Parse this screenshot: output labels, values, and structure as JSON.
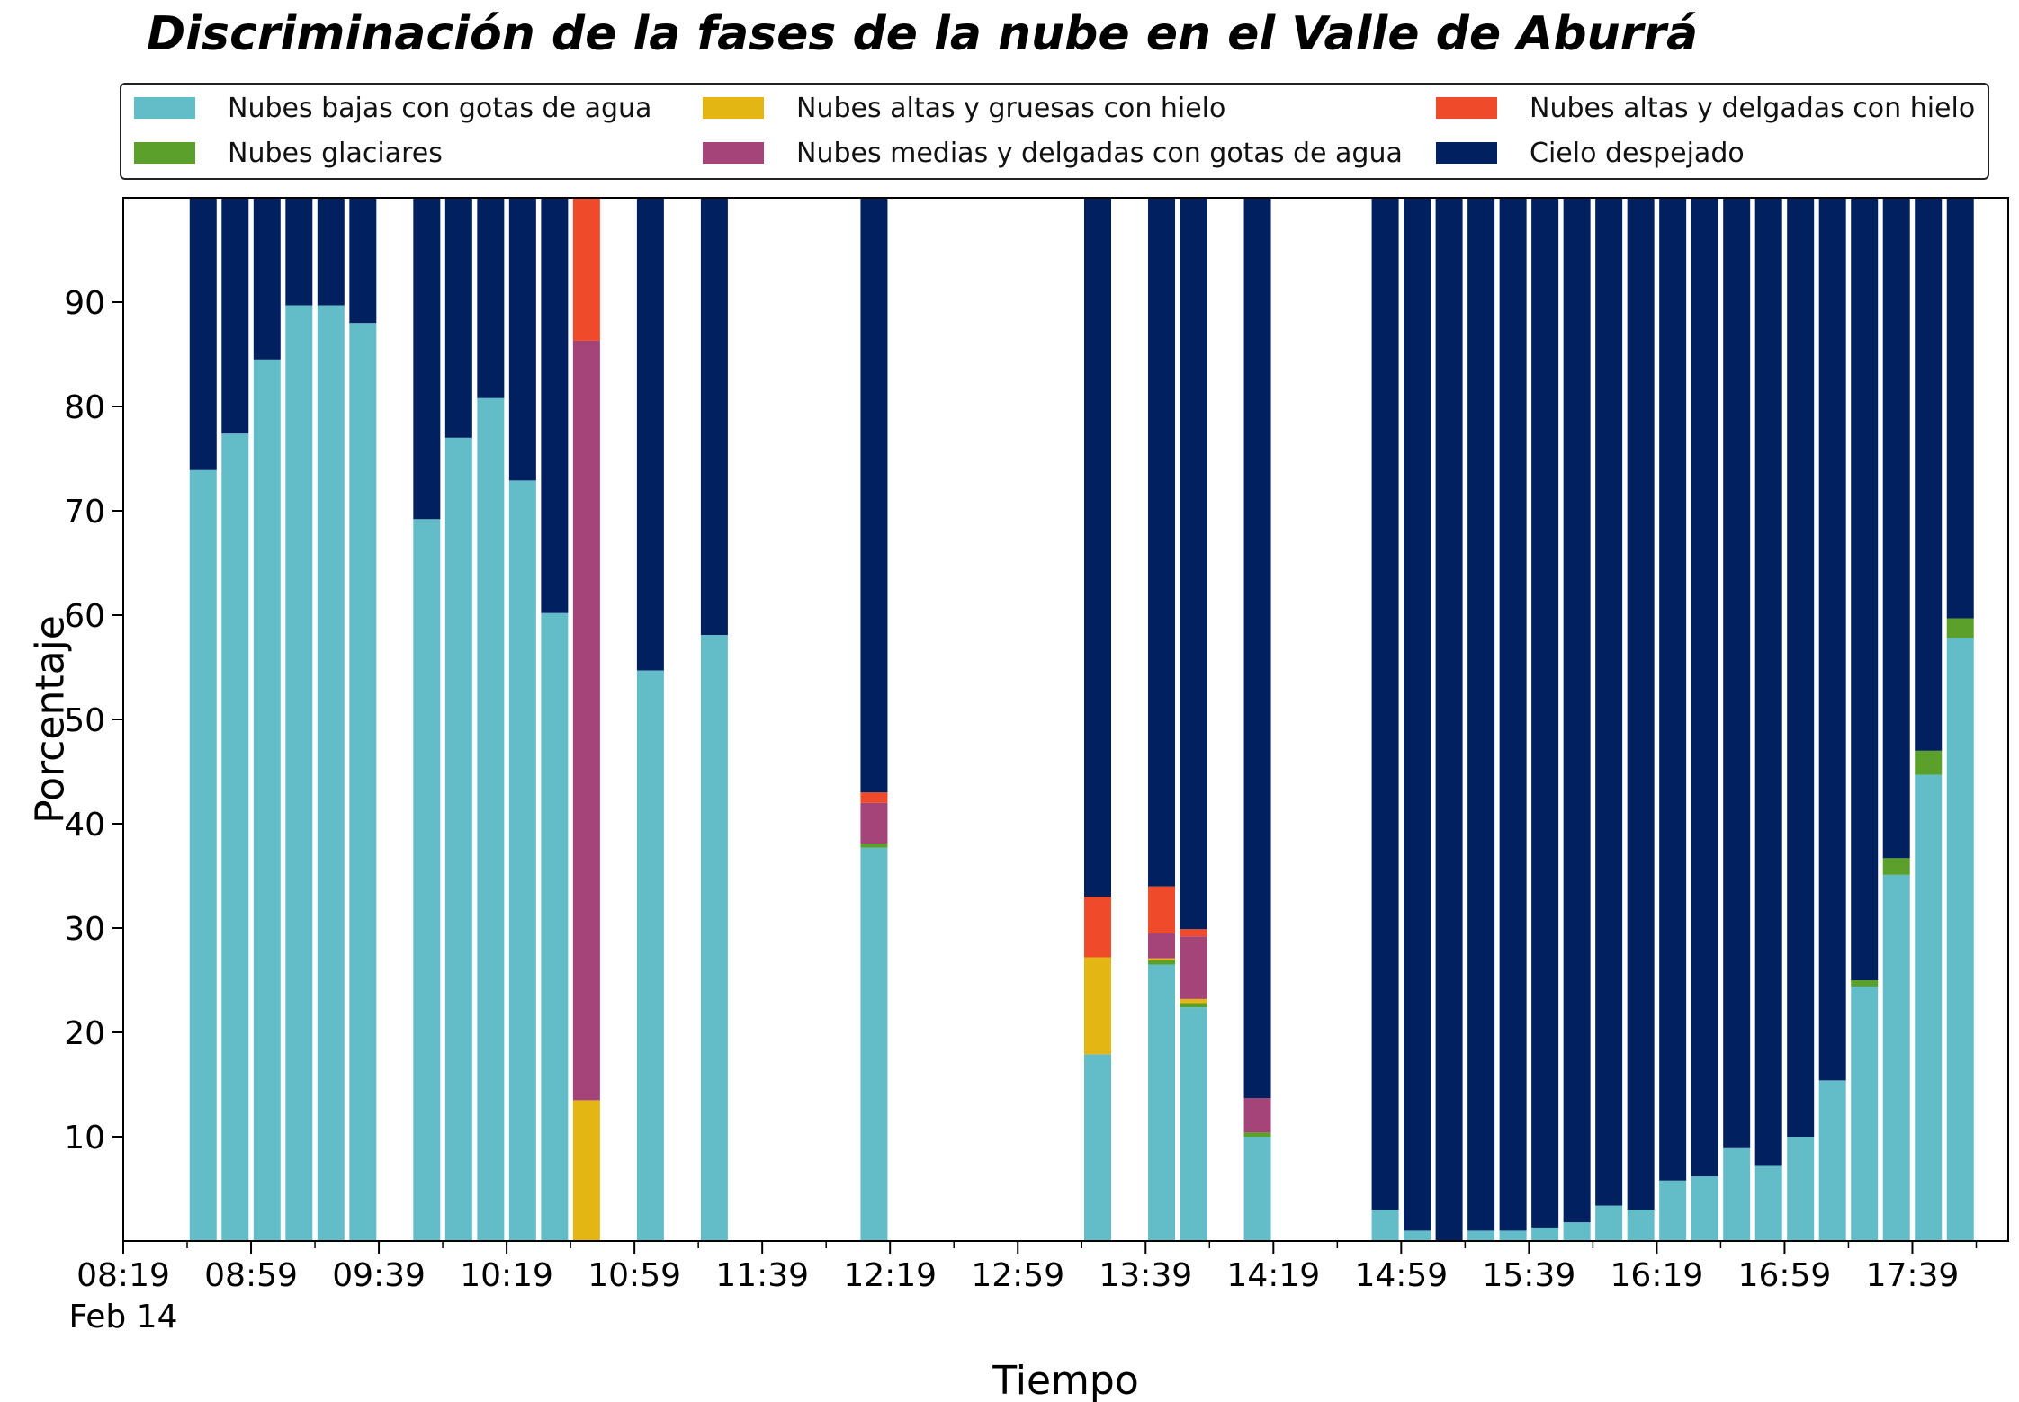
{
  "chart_data": {
    "type": "bar",
    "stacked": true,
    "title": "Discriminación de la fases de la nube en el Valle de Aburrá",
    "xlabel": "Tiempo",
    "ylabel": "Porcentaje",
    "ylim": [
      0,
      100
    ],
    "y_ticks": [
      10,
      20,
      30,
      40,
      50,
      60,
      70,
      80,
      90
    ],
    "x_range_minutes": [
      0,
      590
    ],
    "x_ticks": [
      {
        "label": "08:19",
        "minute": 0
      },
      {
        "label": "08:59",
        "minute": 40
      },
      {
        "label": "09:39",
        "minute": 80
      },
      {
        "label": "10:19",
        "minute": 120
      },
      {
        "label": "10:59",
        "minute": 160
      },
      {
        "label": "11:39",
        "minute": 200
      },
      {
        "label": "12:19",
        "minute": 240
      },
      {
        "label": "12:59",
        "minute": 280
      },
      {
        "label": "13:39",
        "minute": 320
      },
      {
        "label": "14:19",
        "minute": 360
      },
      {
        "label": "14:59",
        "minute": 400
      },
      {
        "label": "15:39",
        "minute": 440
      },
      {
        "label": "16:19",
        "minute": 480
      },
      {
        "label": "16:59",
        "minute": 520
      },
      {
        "label": "17:39",
        "minute": 560
      }
    ],
    "x_date_label": "Feb 14",
    "legend_position": "top",
    "grid": false,
    "series": [
      {
        "name": "Nubes bajas con gotas de agua",
        "color": "#63bdc9"
      },
      {
        "name": "Nubes glaciares",
        "color": "#5ba02a"
      },
      {
        "name": "Nubes altas y gruesas con hielo",
        "color": "#e4b614"
      },
      {
        "name": "Nubes medias y delgadas con gotas de agua",
        "color": "#a44479"
      },
      {
        "name": "Nubes altas y delgadas con hielo",
        "color": "#ef4a2a"
      },
      {
        "name": "Cielo despejado",
        "color": "#01205f"
      }
    ],
    "bars": [
      {
        "minute": 25,
        "values": [
          73.9,
          0,
          0,
          0,
          0,
          26.1
        ]
      },
      {
        "minute": 35,
        "values": [
          77.4,
          0,
          0,
          0,
          0,
          22.6
        ]
      },
      {
        "minute": 45,
        "values": [
          84.5,
          0,
          0,
          0,
          0,
          15.5
        ]
      },
      {
        "minute": 55,
        "values": [
          89.7,
          0,
          0,
          0,
          0,
          10.3
        ]
      },
      {
        "minute": 65,
        "values": [
          89.7,
          0,
          0,
          0,
          0,
          10.3
        ]
      },
      {
        "minute": 75,
        "values": [
          88.0,
          0,
          0,
          0,
          0,
          12.0
        ]
      },
      {
        "minute": 95,
        "values": [
          69.2,
          0,
          0,
          0,
          0,
          30.8
        ]
      },
      {
        "minute": 105,
        "values": [
          77.0,
          0,
          0,
          0,
          0,
          23.0
        ]
      },
      {
        "minute": 115,
        "values": [
          80.8,
          0,
          0,
          0,
          0,
          19.2
        ]
      },
      {
        "minute": 125,
        "values": [
          72.9,
          0,
          0,
          0,
          0,
          27.1
        ]
      },
      {
        "minute": 135,
        "values": [
          60.2,
          0,
          0,
          0,
          0,
          39.8
        ]
      },
      {
        "minute": 145,
        "values": [
          0,
          0,
          13.5,
          72.8,
          13.7,
          0
        ]
      },
      {
        "minute": 165,
        "values": [
          54.7,
          0,
          0,
          0,
          0,
          45.3
        ]
      },
      {
        "minute": 185,
        "values": [
          58.1,
          0,
          0,
          0,
          0,
          41.9
        ]
      },
      {
        "minute": 235,
        "values": [
          37.7,
          0.4,
          0,
          3.9,
          1.0,
          57.0
        ]
      },
      {
        "minute": 305,
        "values": [
          17.9,
          0,
          9.3,
          0,
          5.8,
          67.0
        ]
      },
      {
        "minute": 325,
        "values": [
          26.5,
          0.4,
          0.2,
          2.4,
          4.5,
          66.0
        ]
      },
      {
        "minute": 335,
        "values": [
          22.4,
          0.4,
          0.4,
          6.0,
          0.7,
          70.1
        ]
      },
      {
        "minute": 355,
        "values": [
          10.0,
          0.4,
          0,
          3.3,
          0,
          86.3
        ]
      },
      {
        "minute": 395,
        "values": [
          3.0,
          0,
          0,
          0,
          0,
          97.0
        ]
      },
      {
        "minute": 405,
        "values": [
          1.0,
          0,
          0,
          0,
          0,
          99.0
        ]
      },
      {
        "minute": 415,
        "values": [
          0,
          0,
          0,
          0,
          0,
          100.0
        ]
      },
      {
        "minute": 425,
        "values": [
          1.0,
          0,
          0,
          0,
          0,
          99.0
        ]
      },
      {
        "minute": 435,
        "values": [
          1.0,
          0,
          0,
          0,
          0,
          99.0
        ]
      },
      {
        "minute": 445,
        "values": [
          1.3,
          0,
          0,
          0,
          0,
          98.7
        ]
      },
      {
        "minute": 455,
        "values": [
          1.8,
          0,
          0,
          0,
          0,
          98.2
        ]
      },
      {
        "minute": 465,
        "values": [
          3.4,
          0,
          0,
          0,
          0,
          96.6
        ]
      },
      {
        "minute": 475,
        "values": [
          3.0,
          0,
          0,
          0,
          0,
          97.0
        ]
      },
      {
        "minute": 485,
        "values": [
          5.8,
          0,
          0,
          0,
          0,
          94.2
        ]
      },
      {
        "minute": 495,
        "values": [
          6.2,
          0,
          0,
          0,
          0,
          93.8
        ]
      },
      {
        "minute": 505,
        "values": [
          8.9,
          0,
          0,
          0,
          0,
          91.1
        ]
      },
      {
        "minute": 515,
        "values": [
          7.2,
          0,
          0,
          0,
          0,
          92.8
        ]
      },
      {
        "minute": 525,
        "values": [
          10.0,
          0,
          0,
          0,
          0,
          90.0
        ]
      },
      {
        "minute": 535,
        "values": [
          15.4,
          0,
          0,
          0,
          0,
          84.6
        ]
      },
      {
        "minute": 545,
        "values": [
          24.4,
          0.6,
          0,
          0,
          0,
          75.0
        ]
      },
      {
        "minute": 555,
        "values": [
          35.1,
          1.6,
          0,
          0,
          0,
          63.3
        ]
      },
      {
        "minute": 565,
        "values": [
          44.7,
          2.3,
          0,
          0,
          0,
          53.0
        ]
      },
      {
        "minute": 575,
        "values": [
          57.8,
          1.9,
          0,
          0,
          0,
          40.3
        ]
      }
    ]
  }
}
